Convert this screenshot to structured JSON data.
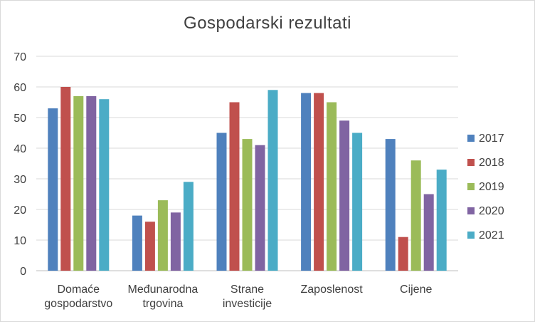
{
  "chart_data": {
    "type": "bar",
    "title": "Gospodarski rezultati",
    "xlabel": "",
    "ylabel": "",
    "ylim": [
      0,
      70
    ],
    "yticks": [
      0,
      10,
      20,
      30,
      40,
      50,
      60,
      70
    ],
    "grid": true,
    "legend_position": "right",
    "categories": [
      [
        "Domaće",
        "gospodarstvo"
      ],
      [
        "Međunarodna",
        "trgovina"
      ],
      [
        "Strane",
        "investicije"
      ],
      [
        "Zaposlenost"
      ],
      [
        "Cijene"
      ]
    ],
    "series": [
      {
        "name": "2017",
        "color": "#4f81bd",
        "values": [
          53,
          18,
          45,
          58,
          43
        ]
      },
      {
        "name": "2018",
        "color": "#c0504d",
        "values": [
          60,
          16,
          55,
          58,
          11
        ]
      },
      {
        "name": "2019",
        "color": "#9bbb59",
        "values": [
          57,
          23,
          43,
          55,
          36
        ]
      },
      {
        "name": "2020",
        "color": "#8064a2",
        "values": [
          57,
          19,
          41,
          49,
          25
        ]
      },
      {
        "name": "2021",
        "color": "#4bacc6",
        "values": [
          56,
          29,
          59,
          45,
          33
        ]
      }
    ]
  }
}
